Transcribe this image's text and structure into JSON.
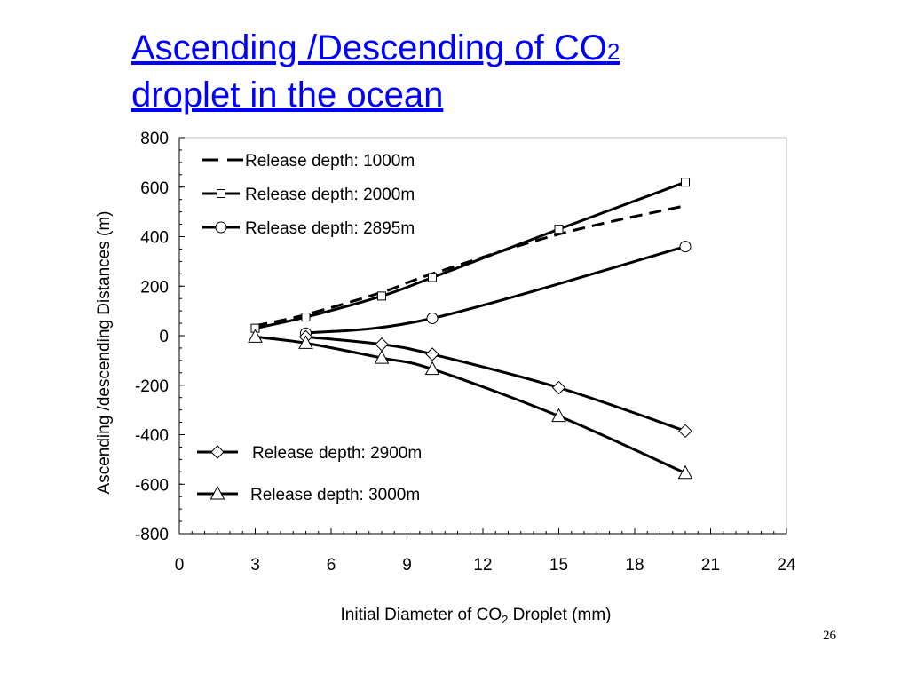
{
  "slide": {
    "title_main": "Ascending /Descending of CO",
    "title_sub": "2",
    "title_line2": "droplet in the ocean",
    "page_number": "26"
  },
  "chart_data": {
    "type": "line",
    "title": "",
    "xlabel_main": "Initial Diameter of CO",
    "xlabel_sub": "2",
    "xlabel_rest": " Droplet (mm)",
    "ylabel": "Ascending /descending  Distances (m)",
    "xlim": [
      0,
      24
    ],
    "ylim": [
      -800,
      800
    ],
    "x_ticks": [
      0,
      3,
      6,
      9,
      12,
      15,
      18,
      21,
      24
    ],
    "y_ticks": [
      800,
      600,
      400,
      200,
      0,
      -200,
      -400,
      -600,
      -800
    ],
    "grid": false,
    "legend_placement": "top-left and lower-left",
    "series": [
      {
        "name": "Release depth: 1000m",
        "marker": "none",
        "dashed": true,
        "points": [
          [
            3,
            40
          ],
          [
            5,
            85
          ],
          [
            8,
            175
          ],
          [
            10,
            250
          ],
          [
            15,
            410
          ],
          [
            20,
            525
          ]
        ]
      },
      {
        "name": "Release depth: 2000m",
        "marker": "square",
        "dashed": false,
        "points": [
          [
            3,
            30
          ],
          [
            5,
            75
          ],
          [
            8,
            160
          ],
          [
            10,
            235
          ],
          [
            15,
            430
          ],
          [
            20,
            620
          ]
        ]
      },
      {
        "name": "Release depth: 2895m",
        "marker": "circle",
        "dashed": false,
        "points": [
          [
            5,
            10
          ],
          [
            10,
            70
          ],
          [
            20,
            360
          ]
        ]
      },
      {
        "name": "Release depth: 2900m",
        "marker": "diamond",
        "dashed": false,
        "points": [
          [
            5,
            -5
          ],
          [
            8,
            -35
          ],
          [
            10,
            -75
          ],
          [
            15,
            -210
          ],
          [
            20,
            -385
          ]
        ]
      },
      {
        "name": "Release depth: 3000m",
        "marker": "triangle",
        "dashed": false,
        "points": [
          [
            3,
            -5
          ],
          [
            5,
            -30
          ],
          [
            8,
            -90
          ],
          [
            10,
            -135
          ],
          [
            15,
            -325
          ],
          [
            20,
            -555
          ]
        ]
      }
    ]
  }
}
